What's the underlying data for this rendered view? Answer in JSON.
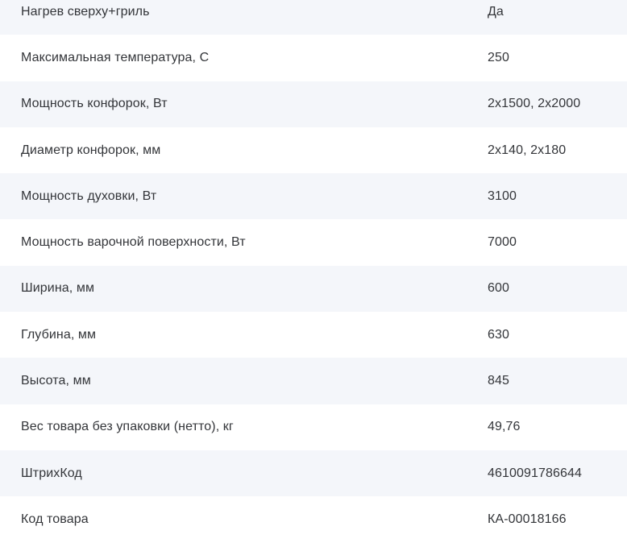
{
  "table": {
    "title": "specifications",
    "colors": {
      "stripe": "#f4f6fa",
      "background": "#ffffff",
      "text": "#333539"
    },
    "rows": [
      {
        "label": "Нагрев сверху+гриль",
        "value": "Да"
      },
      {
        "label": "Максимальная температура, С",
        "value": "250"
      },
      {
        "label": "Мощность конфорок, Вт",
        "value": "2x1500, 2x2000"
      },
      {
        "label": "Диаметр конфорок, мм",
        "value": "2x140, 2x180"
      },
      {
        "label": "Мощность духовки, Вт",
        "value": "3100"
      },
      {
        "label": "Мощность варочной поверхности, Вт",
        "value": "7000"
      },
      {
        "label": "Ширина, мм",
        "value": "600"
      },
      {
        "label": "Глубина, мм",
        "value": "630"
      },
      {
        "label": "Высота, мм",
        "value": "845"
      },
      {
        "label": "Вес товара без упаковки (нетто), кг",
        "value": "49,76"
      },
      {
        "label": "ШтрихКод",
        "value": "4610091786644"
      },
      {
        "label": "Код товара",
        "value": "КА-00018166"
      }
    ]
  }
}
